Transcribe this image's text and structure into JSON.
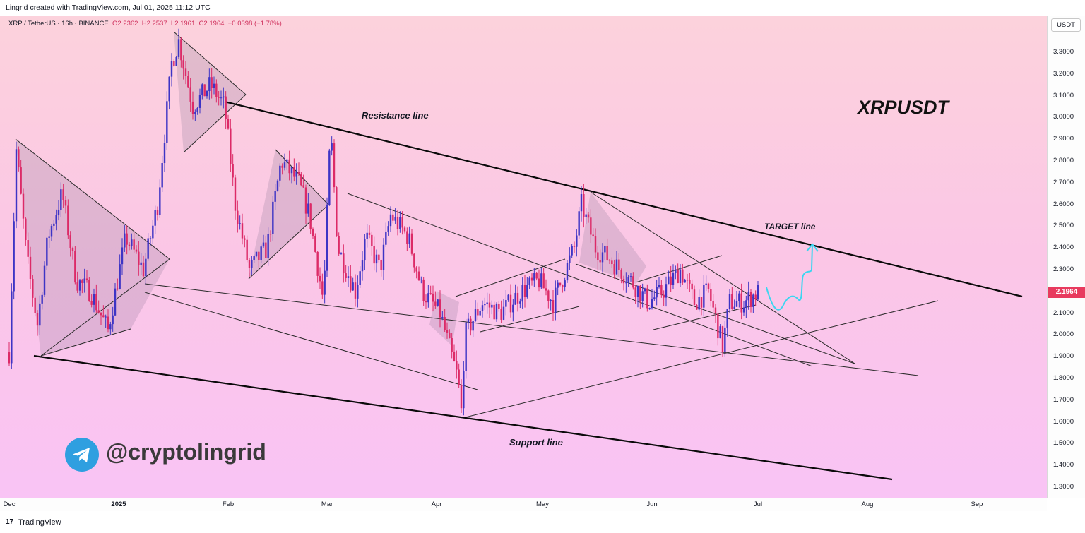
{
  "header": {
    "attribution": "Lingrid created with TradingView.com, Jul 01, 2025 11:12 UTC"
  },
  "legend": {
    "symbol": "XRP / TetherUS · 16h · BINANCE",
    "open": "O2.2362",
    "high": "H2.2537",
    "low": "L2.1961",
    "close": "C2.1964",
    "change": "−0.0398 (−1.78%)"
  },
  "price_axis": {
    "unit": "USDT",
    "last_price": "2.1964",
    "ticks": [
      "3.3000",
      "3.2000",
      "3.1000",
      "3.0000",
      "2.9000",
      "2.8000",
      "2.7000",
      "2.6000",
      "2.5000",
      "2.4000",
      "2.3000",
      "2.2000",
      "2.1000",
      "2.0000",
      "1.9000",
      "1.8000",
      "1.7000",
      "1.6000",
      "1.5000",
      "1.4000",
      "1.3000"
    ]
  },
  "time_axis": {
    "labels": [
      "Dec",
      "2025",
      "Feb",
      "Mar",
      "Apr",
      "May",
      "Jun",
      "Jul",
      "Aug",
      "Sep"
    ]
  },
  "annotations": {
    "symbol_title": "XRPUSDT",
    "resistance": "Resistance line",
    "target": "TARGET line",
    "support": "Support line",
    "handle": "@cryptolingrid"
  },
  "footer": {
    "logo_glyph": "17",
    "brand": "TradingView"
  },
  "colors": {
    "bull": "#3d34c5",
    "bear": "#dc2a67",
    "last_price_badge": "#e83a5e",
    "projection": "#3cd6f0",
    "bg_top": "#fcd2dc",
    "bg_bottom": "#f9c4f5",
    "telegram": "#2f9fe0"
  },
  "chart_data": {
    "type": "candlestick",
    "symbol": "XRPUSDT",
    "exchange": "BINANCE",
    "interval": "16h",
    "y_range": [
      1.25,
      3.42
    ],
    "last_price": 2.1964,
    "x_axis": [
      "Dec",
      "2025",
      "Feb",
      "Mar",
      "Apr",
      "May",
      "Jun",
      "Jul",
      "Aug",
      "Sep"
    ],
    "price_path": [
      {
        "date": "2024-12-01",
        "close": 1.92
      },
      {
        "date": "2024-12-03",
        "close": 2.85
      },
      {
        "date": "2024-12-06",
        "close": 2.35
      },
      {
        "date": "2024-12-09",
        "close": 2.05
      },
      {
        "date": "2024-12-12",
        "close": 2.45
      },
      {
        "date": "2024-12-16",
        "close": 2.65
      },
      {
        "date": "2024-12-20",
        "close": 2.25
      },
      {
        "date": "2024-12-24",
        "close": 2.2
      },
      {
        "date": "2024-12-29",
        "close": 2.02
      },
      {
        "date": "2025-01-03",
        "close": 2.45
      },
      {
        "date": "2025-01-08",
        "close": 2.3
      },
      {
        "date": "2025-01-12",
        "close": 2.6
      },
      {
        "date": "2025-01-16",
        "close": 3.25
      },
      {
        "date": "2025-01-18",
        "close": 3.35
      },
      {
        "date": "2025-01-22",
        "close": 3.05
      },
      {
        "date": "2025-01-27",
        "close": 3.15
      },
      {
        "date": "2025-01-31",
        "close": 3.05
      },
      {
        "date": "2025-02-03",
        "close": 2.6
      },
      {
        "date": "2025-02-07",
        "close": 2.3
      },
      {
        "date": "2025-02-12",
        "close": 2.4
      },
      {
        "date": "2025-02-16",
        "close": 2.8
      },
      {
        "date": "2025-02-21",
        "close": 2.7
      },
      {
        "date": "2025-02-24",
        "close": 2.55
      },
      {
        "date": "2025-02-28",
        "close": 2.15
      },
      {
        "date": "2025-03-02",
        "close": 2.95
      },
      {
        "date": "2025-03-04",
        "close": 2.4
      },
      {
        "date": "2025-03-09",
        "close": 2.2
      },
      {
        "date": "2025-03-12",
        "close": 2.45
      },
      {
        "date": "2025-03-16",
        "close": 2.3
      },
      {
        "date": "2025-03-19",
        "close": 2.55
      },
      {
        "date": "2025-03-24",
        "close": 2.45
      },
      {
        "date": "2025-03-28",
        "close": 2.2
      },
      {
        "date": "2025-04-02",
        "close": 2.1
      },
      {
        "date": "2025-04-07",
        "close": 1.8
      },
      {
        "date": "2025-04-08",
        "close": 1.65
      },
      {
        "date": "2025-04-09",
        "close": 2.0
      },
      {
        "date": "2025-04-14",
        "close": 2.15
      },
      {
        "date": "2025-04-19",
        "close": 2.1
      },
      {
        "date": "2025-04-25",
        "close": 2.2
      },
      {
        "date": "2025-04-30",
        "close": 2.25
      },
      {
        "date": "2025-05-04",
        "close": 2.15
      },
      {
        "date": "2025-05-10",
        "close": 2.4
      },
      {
        "date": "2025-05-12",
        "close": 2.6
      },
      {
        "date": "2025-05-16",
        "close": 2.4
      },
      {
        "date": "2025-05-20",
        "close": 2.35
      },
      {
        "date": "2025-05-26",
        "close": 2.25
      },
      {
        "date": "2025-05-31",
        "close": 2.15
      },
      {
        "date": "2025-06-04",
        "close": 2.2
      },
      {
        "date": "2025-06-09",
        "close": 2.3
      },
      {
        "date": "2025-06-13",
        "close": 2.15
      },
      {
        "date": "2025-06-17",
        "close": 2.2
      },
      {
        "date": "2025-06-21",
        "close": 1.95
      },
      {
        "date": "2025-06-23",
        "close": 2.15
      },
      {
        "date": "2025-06-27",
        "close": 2.15
      },
      {
        "date": "2025-07-01",
        "close": 2.1964
      }
    ],
    "projection": [
      {
        "date": "2025-07-01",
        "price": 2.22
      },
      {
        "date": "2025-07-04",
        "price": 2.1
      },
      {
        "date": "2025-07-07",
        "price": 2.2
      },
      {
        "date": "2025-07-10",
        "price": 2.3
      },
      {
        "date": "2025-07-12",
        "price": 2.3
      },
      {
        "date": "2025-07-14",
        "price": 2.4
      }
    ],
    "annotation_lines": [
      {
        "name": "Resistance line",
        "from": {
          "date": "2025-01-31",
          "price": 3.08
        },
        "to": {
          "date": "2025-09-26",
          "price": 2.18
        }
      },
      {
        "name": "Support line",
        "from": {
          "date": "2024-12-11",
          "price": 1.9
        },
        "to": {
          "date": "2025-08-29",
          "price": 1.34
        }
      }
    ]
  }
}
